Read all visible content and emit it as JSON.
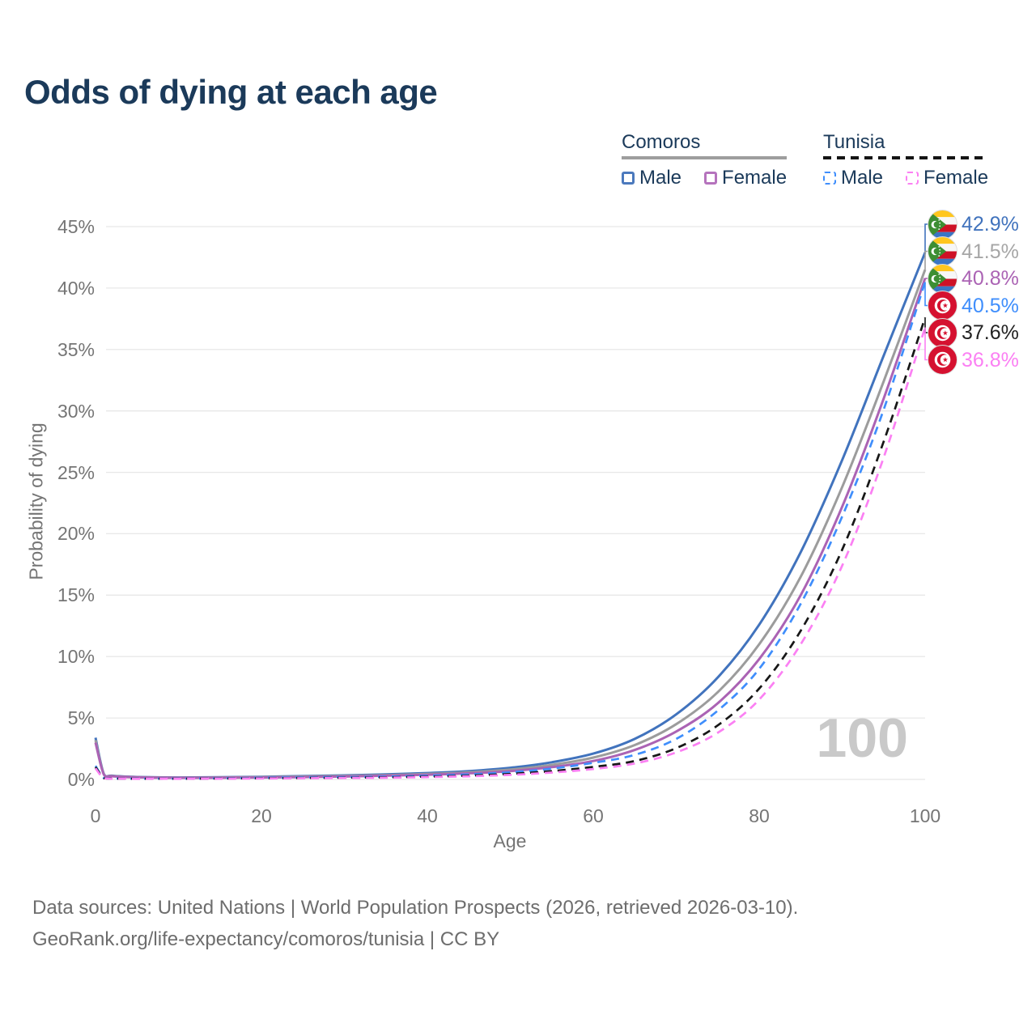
{
  "title": "Odds of dying at each age",
  "watermark": "100",
  "legend": {
    "groups": [
      {
        "name": "Comoros",
        "line_style": "solid",
        "line_color": "#9c9c9c",
        "items": [
          {
            "label": "Male",
            "color": "#4b79bd",
            "dashed": false
          },
          {
            "label": "Female",
            "color": "#b573bd",
            "dashed": false
          }
        ]
      },
      {
        "name": "Tunisia",
        "line_style": "dashed",
        "line_color": "#141414",
        "items": [
          {
            "label": "Male",
            "color": "#3f8efc",
            "dashed": true
          },
          {
            "label": "Female",
            "color": "#fb80f3",
            "dashed": true
          }
        ]
      }
    ]
  },
  "y_axis": {
    "title": "Probability of dying",
    "tick_labels": [
      "0%",
      "5%",
      "10%",
      "15%",
      "20%",
      "25%",
      "30%",
      "35%",
      "40%",
      "45%"
    ]
  },
  "x_axis": {
    "title": "Age",
    "tick_values": [
      0,
      20,
      40,
      60,
      80,
      100
    ]
  },
  "footer": {
    "line1": "Data sources: United Nations | World Population Prospects (2026, retrieved 2026-03-10).",
    "line2": "GeoRank.org/life-expectancy/comoros/tunisia | CC BY"
  },
  "chart_data": {
    "type": "line",
    "title": "Odds of dying at each age",
    "xlabel": "Age",
    "ylabel": "Probability of dying",
    "xlim": [
      0,
      100
    ],
    "ylim_percent": [
      0,
      45
    ],
    "grid": "horizontal",
    "legend_position": "top-right",
    "ages": [
      0,
      1,
      2,
      5,
      10,
      15,
      20,
      25,
      30,
      35,
      40,
      45,
      50,
      55,
      60,
      65,
      70,
      75,
      80,
      85,
      90,
      95,
      100
    ],
    "series": [
      {
        "name": "Comoros Male",
        "country": "Comoros",
        "sex": "Male",
        "flag": "comoros",
        "dashed": false,
        "color": "#4173bd",
        "label_color": "#4173bd",
        "end_label": "42.9%",
        "end_value_percent": 42.9,
        "values_percent": [
          3.4,
          0.45,
          0.3,
          0.2,
          0.16,
          0.18,
          0.22,
          0.27,
          0.33,
          0.41,
          0.52,
          0.68,
          0.95,
          1.4,
          2.1,
          3.3,
          5.3,
          8.3,
          12.6,
          18.5,
          26.0,
          34.5,
          42.9
        ]
      },
      {
        "name": "Comoros",
        "country": "Comoros",
        "sex": "Both",
        "flag": "comoros",
        "dashed": false,
        "color": "#9c9c9c",
        "label_color": "#a6a6a6",
        "end_label": "41.5%",
        "end_value_percent": 41.5,
        "values_percent": [
          3.2,
          0.42,
          0.28,
          0.18,
          0.14,
          0.16,
          0.19,
          0.23,
          0.28,
          0.35,
          0.44,
          0.58,
          0.8,
          1.18,
          1.78,
          2.8,
          4.5,
          7.1,
          11.0,
          16.5,
          23.8,
          32.4,
          41.5
        ]
      },
      {
        "name": "Comoros Female",
        "country": "Comoros",
        "sex": "Female",
        "flag": "comoros",
        "dashed": false,
        "color": "#ab63b4",
        "label_color": "#ab63b4",
        "end_label": "40.8%",
        "end_value_percent": 40.8,
        "values_percent": [
          3.0,
          0.4,
          0.26,
          0.17,
          0.13,
          0.14,
          0.16,
          0.19,
          0.24,
          0.3,
          0.38,
          0.5,
          0.68,
          1.0,
          1.5,
          2.4,
          3.9,
          6.2,
          9.8,
          15.0,
          22.2,
          31.0,
          40.8
        ]
      },
      {
        "name": "Tunisia Male",
        "country": "Tunisia",
        "sex": "Male",
        "flag": "tunisia",
        "dashed": true,
        "color": "#3f8efc",
        "label_color": "#3f8efc",
        "end_label": "40.5%",
        "end_value_percent": 40.5,
        "values_percent": [
          1.1,
          0.12,
          0.08,
          0.06,
          0.06,
          0.09,
          0.13,
          0.16,
          0.19,
          0.23,
          0.3,
          0.41,
          0.58,
          0.88,
          1.35,
          2.0,
          3.3,
          5.6,
          9.0,
          14.3,
          21.4,
          30.1,
          40.5
        ]
      },
      {
        "name": "Tunisia",
        "country": "Tunisia",
        "sex": "Both",
        "flag": "tunisia",
        "dashed": true,
        "color": "#171717",
        "label_color": "#222222",
        "end_label": "37.6%",
        "end_value_percent": 37.6,
        "values_percent": [
          1.0,
          0.1,
          0.07,
          0.05,
          0.05,
          0.07,
          0.1,
          0.12,
          0.14,
          0.17,
          0.23,
          0.31,
          0.45,
          0.68,
          1.02,
          1.5,
          2.55,
          4.4,
          7.4,
          12.1,
          18.7,
          27.5,
          37.6
        ]
      },
      {
        "name": "Tunisia Female",
        "country": "Tunisia",
        "sex": "Female",
        "flag": "tunisia",
        "dashed": true,
        "color": "#fb80f3",
        "label_color": "#fb80f3",
        "end_label": "36.8%",
        "end_value_percent": 36.8,
        "values_percent": [
          0.9,
          0.09,
          0.06,
          0.045,
          0.045,
          0.06,
          0.08,
          0.1,
          0.12,
          0.14,
          0.19,
          0.26,
          0.37,
          0.56,
          0.85,
          1.3,
          2.2,
          3.8,
          6.5,
          11.0,
          17.4,
          26.2,
          36.8
        ]
      }
    ]
  }
}
